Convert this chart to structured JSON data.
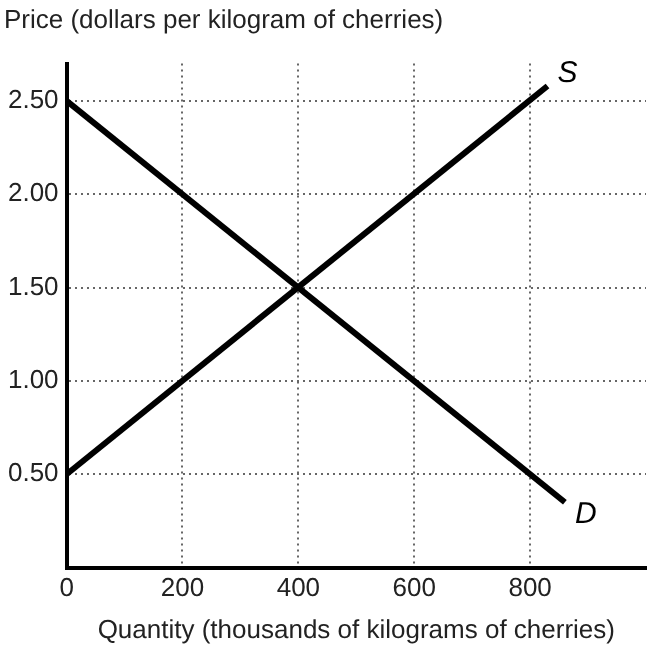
{
  "chart_data": {
    "type": "line",
    "xlabel": "Quantity (thousands of kilograms of cherries)",
    "ylabel": "Price (dollars per kilogram of cherries)",
    "xlim": [
      0,
      1000
    ],
    "xticks": [
      0,
      200,
      400,
      600,
      800
    ],
    "ylim": [
      0,
      2.7
    ],
    "yticks": [
      {
        "value": 0.5,
        "label": "0.50"
      },
      {
        "value": 1,
        "label": "1.00"
      },
      {
        "value": 1.5,
        "label": "1.50"
      },
      {
        "value": 2,
        "label": "2.00"
      },
      {
        "value": 2.5,
        "label": "2.50"
      }
    ],
    "series": [
      {
        "name": "S",
        "color": "#000000",
        "x": [
          0,
          830
        ],
        "values": [
          0.5,
          2.58
        ]
      },
      {
        "name": "D",
        "color": "#000000",
        "x": [
          0,
          860
        ],
        "values": [
          2.5,
          0.35
        ]
      }
    ],
    "grid": true,
    "legend": false,
    "marker": "none",
    "line_style": "solid"
  }
}
